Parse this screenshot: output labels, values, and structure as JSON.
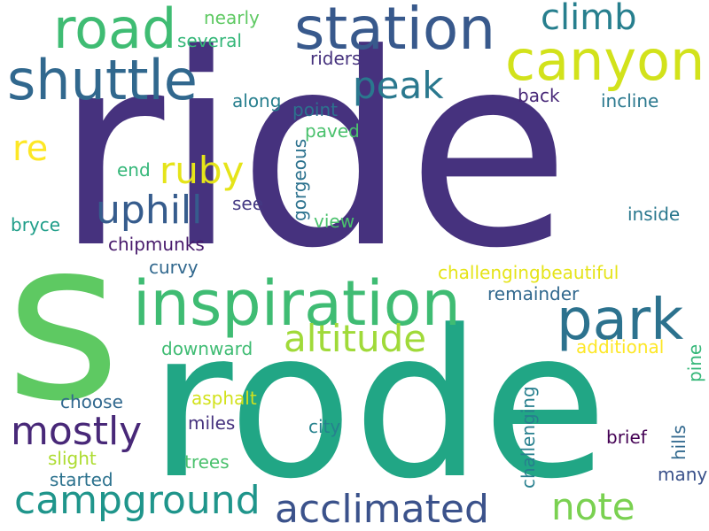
{
  "word_cloud": {
    "words": [
      {
        "text": "ride",
        "color": "#46327e"
      },
      {
        "text": "s",
        "color": "#5ec962"
      },
      {
        "text": "rode",
        "color": "#21a685"
      },
      {
        "text": "inspiration",
        "color": "#3fbc73"
      },
      {
        "text": "station",
        "color": "#38598c"
      },
      {
        "text": "road",
        "color": "#3fbc73"
      },
      {
        "text": "canyon",
        "color": "#d2e21b"
      },
      {
        "text": "shuttle",
        "color": "#31688e"
      },
      {
        "text": "climb",
        "color": "#277f8e"
      },
      {
        "text": "peak",
        "color": "#2a788e"
      },
      {
        "text": "park",
        "color": "#2c728e"
      },
      {
        "text": "altitude",
        "color": "#a0da39"
      },
      {
        "text": "ruby",
        "color": "#e5e419"
      },
      {
        "text": "re",
        "color": "#fde725"
      },
      {
        "text": "uphill",
        "color": "#365c8d"
      },
      {
        "text": "mostly",
        "color": "#482878"
      },
      {
        "text": "campground",
        "color": "#1f958b"
      },
      {
        "text": "acclimated",
        "color": "#3b528b"
      },
      {
        "text": "note",
        "color": "#7ad151"
      },
      {
        "text": "nearly",
        "color": "#5ec962"
      },
      {
        "text": "several",
        "color": "#35b779"
      },
      {
        "text": "riders",
        "color": "#46327e"
      },
      {
        "text": "along",
        "color": "#277f8e"
      },
      {
        "text": "point",
        "color": "#2c728e"
      },
      {
        "text": "paved",
        "color": "#4ac16d"
      },
      {
        "text": "back",
        "color": "#482878"
      },
      {
        "text": "incline",
        "color": "#2a788e"
      },
      {
        "text": "end",
        "color": "#35b779"
      },
      {
        "text": "gorgeous",
        "color": "#2c728e"
      },
      {
        "text": "see",
        "color": "#443983"
      },
      {
        "text": "view",
        "color": "#4ac16d"
      },
      {
        "text": "inside",
        "color": "#2a788e"
      },
      {
        "text": "bryce",
        "color": "#1f9e89"
      },
      {
        "text": "chipmunks",
        "color": "#481a6c"
      },
      {
        "text": "curvy",
        "color": "#31688e"
      },
      {
        "text": "challengingbeautiful",
        "color": "#e5e419"
      },
      {
        "text": "remainder",
        "color": "#31688e"
      },
      {
        "text": "additional",
        "color": "#fde725"
      },
      {
        "text": "downward",
        "color": "#3fbc73"
      },
      {
        "text": "pine",
        "color": "#35b779"
      },
      {
        "text": "choose",
        "color": "#31688e"
      },
      {
        "text": "asphalt",
        "color": "#d2e21b"
      },
      {
        "text": "challenging",
        "color": "#277f8e"
      },
      {
        "text": "miles",
        "color": "#46327e"
      },
      {
        "text": "city",
        "color": "#26828e"
      },
      {
        "text": "brief",
        "color": "#440154"
      },
      {
        "text": "hills",
        "color": "#31688e"
      },
      {
        "text": "slight",
        "color": "#addc30"
      },
      {
        "text": "trees",
        "color": "#4ac16d"
      },
      {
        "text": "many",
        "color": "#3b528b"
      },
      {
        "text": "started",
        "color": "#2c728e"
      }
    ]
  }
}
